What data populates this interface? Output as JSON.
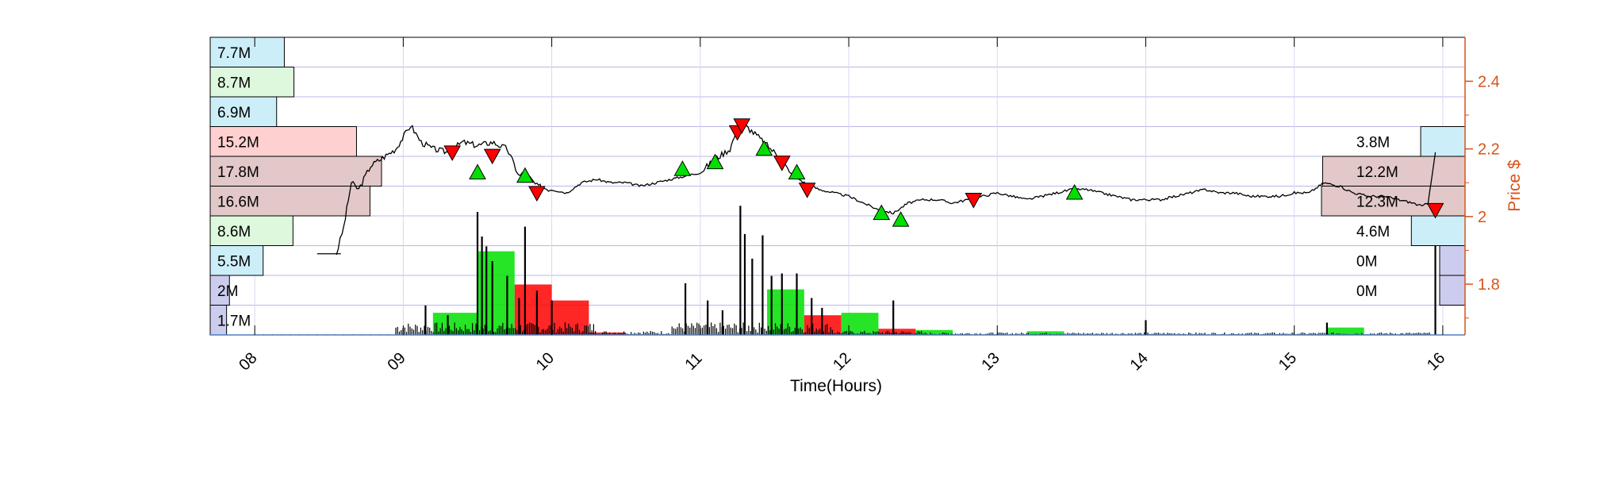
{
  "chart_data": {
    "type": "bar",
    "description_type": "intraday price line with volume bars and volume-at-price profile",
    "xlabel": "Time(Hours)",
    "ylabel_right": "Price $",
    "x_tick_labels": [
      "08",
      "09",
      "10",
      "11",
      "12",
      "13",
      "14",
      "15",
      "16"
    ],
    "x_range_hours": [
      7.7,
      16.15
    ],
    "y_right_ticks": [
      1.8,
      2,
      2.2,
      2.4
    ],
    "y_right_range": [
      1.65,
      2.53
    ],
    "grid": true,
    "colors": {
      "axis_right": "#d95319",
      "grid": "#c8c8f0",
      "buy": "#00e000",
      "sell": "#ff0000",
      "price_line": "#000000",
      "profile_blue": "#ccccee",
      "profile_cyan": "#cceef8",
      "profile_green": "#ddf8dd",
      "profile_red": "#ffd0d0",
      "profile_brown": "#e2c8c8"
    },
    "left_profile": [
      {
        "label": "7.7M",
        "volume": 7.7,
        "color": "profile_cyan"
      },
      {
        "label": "8.7M",
        "volume": 8.7,
        "color": "profile_green"
      },
      {
        "label": "6.9M",
        "volume": 6.9,
        "color": "profile_cyan"
      },
      {
        "label": "15.2M",
        "volume": 15.2,
        "color": "profile_red"
      },
      {
        "label": "17.8M",
        "volume": 17.8,
        "color": "profile_brown"
      },
      {
        "label": "16.6M",
        "volume": 16.6,
        "color": "profile_brown"
      },
      {
        "label": "8.6M",
        "volume": 8.6,
        "color": "profile_green"
      },
      {
        "label": "5.5M",
        "volume": 5.5,
        "color": "profile_cyan"
      },
      {
        "label": "2M",
        "volume": 2,
        "color": "profile_blue"
      },
      {
        "label": "1.7M",
        "volume": 1.7,
        "color": "profile_blue"
      }
    ],
    "right_profile": [
      {
        "label": "",
        "volume": 0,
        "color": ""
      },
      {
        "label": "",
        "volume": 0,
        "color": ""
      },
      {
        "label": "",
        "volume": 0,
        "color": ""
      },
      {
        "label": "3.8M",
        "volume": 3.8,
        "color": "profile_cyan"
      },
      {
        "label": "12.2M",
        "volume": 12.2,
        "color": "profile_brown"
      },
      {
        "label": "12.3M",
        "volume": 12.3,
        "color": "profile_brown"
      },
      {
        "label": "4.6M",
        "volume": 4.6,
        "color": "profile_cyan"
      },
      {
        "label": "0M",
        "volume": 0.1,
        "color": "profile_blue"
      },
      {
        "label": "0M",
        "volume": 0.1,
        "color": "profile_blue"
      },
      {
        "label": "",
        "volume": 0,
        "color": ""
      }
    ],
    "price_series": {
      "x": [
        8.55,
        8.6,
        8.65,
        8.7,
        8.78,
        8.85,
        8.95,
        9.05,
        9.12,
        9.2,
        9.3,
        9.4,
        9.5,
        9.6,
        9.7,
        9.78,
        9.82,
        9.9,
        10.0,
        10.1,
        10.2,
        10.3,
        10.4,
        10.5,
        10.6,
        10.7,
        10.8,
        10.9,
        11.0,
        11.1,
        11.2,
        11.25,
        11.3,
        11.38,
        11.45,
        11.55,
        11.6,
        11.7,
        11.8,
        11.9,
        12.0,
        12.1,
        12.2,
        12.3,
        12.4,
        12.5,
        12.6,
        12.7,
        12.8,
        12.9,
        13.0,
        13.1,
        13.2,
        13.3,
        13.4,
        13.5,
        13.6,
        13.7,
        13.8,
        13.9,
        14.0,
        14.1,
        14.2,
        14.3,
        14.4,
        14.5,
        14.6,
        14.7,
        14.8,
        14.9,
        15.0,
        15.1,
        15.2,
        15.3,
        15.4,
        15.5,
        15.6,
        15.7,
        15.8,
        15.86,
        15.9,
        15.95
      ],
      "y": [
        1.89,
        1.97,
        2.1,
        2.08,
        2.15,
        2.17,
        2.2,
        2.27,
        2.22,
        2.2,
        2.19,
        2.22,
        2.21,
        2.22,
        2.2,
        2.12,
        2.13,
        2.09,
        2.08,
        2.07,
        2.1,
        2.11,
        2.1,
        2.1,
        2.09,
        2.1,
        2.11,
        2.12,
        2.13,
        2.17,
        2.2,
        2.26,
        2.27,
        2.24,
        2.21,
        2.17,
        2.13,
        2.1,
        2.08,
        2.07,
        2.06,
        2.04,
        2.02,
        2.01,
        2.04,
        2.05,
        2.05,
        2.04,
        2.05,
        2.06,
        2.07,
        2.06,
        2.05,
        2.06,
        2.07,
        2.08,
        2.08,
        2.07,
        2.06,
        2.05,
        2.05,
        2.05,
        2.06,
        2.07,
        2.08,
        2.07,
        2.07,
        2.06,
        2.06,
        2.06,
        2.07,
        2.07,
        2.1,
        2.09,
        2.07,
        2.06,
        2.06,
        2.05,
        2.04,
        2.03,
        2.04,
        2.19
      ]
    },
    "signals": [
      {
        "x": 9.33,
        "y": 2.19,
        "dir": "sell"
      },
      {
        "x": 9.5,
        "y": 2.13,
        "dir": "buy"
      },
      {
        "x": 9.6,
        "y": 2.18,
        "dir": "sell"
      },
      {
        "x": 9.82,
        "y": 2.12,
        "dir": "buy"
      },
      {
        "x": 9.9,
        "y": 2.07,
        "dir": "sell"
      },
      {
        "x": 10.88,
        "y": 2.14,
        "dir": "buy"
      },
      {
        "x": 11.1,
        "y": 2.16,
        "dir": "buy"
      },
      {
        "x": 11.25,
        "y": 2.25,
        "dir": "sell"
      },
      {
        "x": 11.28,
        "y": 2.27,
        "dir": "sell"
      },
      {
        "x": 11.43,
        "y": 2.2,
        "dir": "buy"
      },
      {
        "x": 11.55,
        "y": 2.16,
        "dir": "sell"
      },
      {
        "x": 11.65,
        "y": 2.13,
        "dir": "buy"
      },
      {
        "x": 11.72,
        "y": 2.08,
        "dir": "sell"
      },
      {
        "x": 12.22,
        "y": 2.01,
        "dir": "buy"
      },
      {
        "x": 12.35,
        "y": 1.99,
        "dir": "buy"
      },
      {
        "x": 12.84,
        "y": 2.05,
        "dir": "sell"
      },
      {
        "x": 13.52,
        "y": 2.07,
        "dir": "buy"
      },
      {
        "x": 15.95,
        "y": 2.02,
        "dir": "sell"
      }
    ],
    "volume_spikes": [
      {
        "x": 9.15,
        "v": 0.24
      },
      {
        "x": 9.3,
        "v": 0.16
      },
      {
        "x": 9.5,
        "v": 1.0
      },
      {
        "x": 9.53,
        "v": 0.8
      },
      {
        "x": 9.56,
        "v": 0.72
      },
      {
        "x": 9.6,
        "v": 0.6
      },
      {
        "x": 9.7,
        "v": 0.48
      },
      {
        "x": 9.78,
        "v": 0.3
      },
      {
        "x": 9.82,
        "v": 0.88
      },
      {
        "x": 9.9,
        "v": 0.36
      },
      {
        "x": 10.0,
        "v": 0.28
      },
      {
        "x": 10.9,
        "v": 0.42
      },
      {
        "x": 11.05,
        "v": 0.28
      },
      {
        "x": 11.15,
        "v": 0.2
      },
      {
        "x": 11.27,
        "v": 1.05
      },
      {
        "x": 11.3,
        "v": 0.82
      },
      {
        "x": 11.35,
        "v": 0.62
      },
      {
        "x": 11.42,
        "v": 0.81
      },
      {
        "x": 11.48,
        "v": 0.48
      },
      {
        "x": 11.55,
        "v": 0.5
      },
      {
        "x": 11.65,
        "v": 0.5
      },
      {
        "x": 11.75,
        "v": 0.3
      },
      {
        "x": 11.82,
        "v": 0.22
      },
      {
        "x": 12.3,
        "v": 0.28
      },
      {
        "x": 14.0,
        "v": 0.12
      },
      {
        "x": 15.22,
        "v": 0.1
      },
      {
        "x": 15.95,
        "v": 1.0
      }
    ],
    "volume_blocks": [
      {
        "x0": 9.2,
        "x1": 9.5,
        "v": 0.18,
        "dir": "buy"
      },
      {
        "x0": 9.5,
        "x1": 9.75,
        "v": 0.68,
        "dir": "buy"
      },
      {
        "x0": 9.75,
        "x1": 10.0,
        "v": 0.41,
        "dir": "sell"
      },
      {
        "x0": 10.0,
        "x1": 10.25,
        "v": 0.28,
        "dir": "sell"
      },
      {
        "x0": 10.25,
        "x1": 10.5,
        "v": 0.02,
        "dir": "sell"
      },
      {
        "x0": 11.45,
        "x1": 11.7,
        "v": 0.37,
        "dir": "buy"
      },
      {
        "x0": 11.7,
        "x1": 11.95,
        "v": 0.16,
        "dir": "sell"
      },
      {
        "x0": 11.95,
        "x1": 12.2,
        "v": 0.18,
        "dir": "buy"
      },
      {
        "x0": 12.2,
        "x1": 12.45,
        "v": 0.05,
        "dir": "sell"
      },
      {
        "x0": 12.45,
        "x1": 12.7,
        "v": 0.04,
        "dir": "buy"
      },
      {
        "x0": 13.2,
        "x1": 13.45,
        "v": 0.03,
        "dir": "buy"
      },
      {
        "x0": 15.22,
        "x1": 15.47,
        "v": 0.06,
        "dir": "buy"
      }
    ]
  }
}
